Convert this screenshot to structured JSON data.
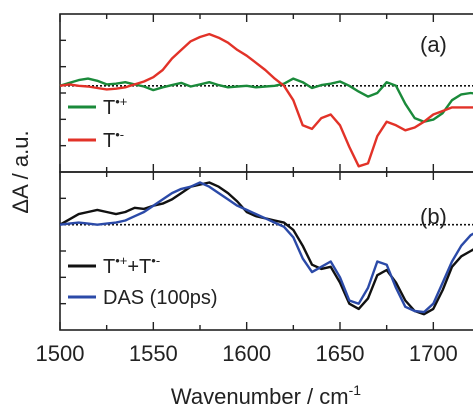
{
  "xlabel_base": "Wavenumber / cm",
  "xlabel_sup": "-1",
  "ylabel": "ΔA / a.u.",
  "chart_data": [
    {
      "type": "line",
      "panel_label": "(a)",
      "xlabel": "Wavenumber / cm-1",
      "ylabel": "ΔA / a.u.",
      "xlim": [
        1500,
        1725
      ],
      "ylim": [
        -1.2,
        1.0
      ],
      "xticks": [
        1500,
        1550,
        1600,
        1650,
        1700
      ],
      "baseline": 0,
      "legend_position": "lower-left",
      "series": [
        {
          "name_base": "T",
          "name_sup": "•+",
          "color": "#1a8a3a",
          "x": [
            1500,
            1505,
            1510,
            1515,
            1520,
            1525,
            1530,
            1535,
            1540,
            1545,
            1550,
            1555,
            1560,
            1565,
            1570,
            1575,
            1580,
            1585,
            1590,
            1595,
            1600,
            1605,
            1610,
            1615,
            1620,
            1625,
            1630,
            1635,
            1640,
            1645,
            1650,
            1655,
            1660,
            1665,
            1670,
            1675,
            1680,
            1685,
            1690,
            1695,
            1700,
            1705,
            1710,
            1715,
            1720,
            1725
          ],
          "y": [
            0.0,
            0.04,
            0.08,
            0.1,
            0.07,
            0.02,
            0.03,
            0.05,
            0.02,
            -0.01,
            -0.06,
            -0.02,
            0.01,
            0.04,
            -0.01,
            0.02,
            0.05,
            0.01,
            -0.02,
            -0.01,
            0.0,
            -0.02,
            -0.01,
            0.0,
            0.03,
            0.1,
            0.05,
            -0.03,
            0.01,
            0.03,
            0.06,
            0.0,
            -0.08,
            -0.15,
            -0.1,
            0.05,
            0.0,
            -0.25,
            -0.45,
            -0.5,
            -0.47,
            -0.38,
            -0.2,
            -0.12,
            -0.1,
            -0.12
          ]
        },
        {
          "name_base": "T",
          "name_sup": "•-",
          "color": "#e23228",
          "x": [
            1500,
            1505,
            1510,
            1515,
            1520,
            1525,
            1530,
            1535,
            1540,
            1545,
            1550,
            1555,
            1560,
            1565,
            1570,
            1575,
            1580,
            1585,
            1590,
            1595,
            1600,
            1605,
            1610,
            1615,
            1620,
            1625,
            1630,
            1635,
            1640,
            1645,
            1650,
            1655,
            1660,
            1665,
            1670,
            1675,
            1680,
            1685,
            1690,
            1695,
            1700,
            1705,
            1710,
            1715,
            1720,
            1725
          ],
          "y": [
            0.0,
            0.02,
            0.0,
            -0.01,
            -0.03,
            -0.05,
            -0.04,
            -0.02,
            0.02,
            0.06,
            0.12,
            0.22,
            0.38,
            0.5,
            0.62,
            0.68,
            0.72,
            0.67,
            0.6,
            0.5,
            0.42,
            0.32,
            0.22,
            0.1,
            0.0,
            -0.2,
            -0.55,
            -0.6,
            -0.45,
            -0.4,
            -0.55,
            -0.85,
            -1.12,
            -1.08,
            -0.7,
            -0.5,
            -0.55,
            -0.62,
            -0.58,
            -0.5,
            -0.4,
            -0.35,
            -0.3,
            -0.3,
            -0.3,
            -0.3
          ]
        }
      ]
    },
    {
      "type": "line",
      "panel_label": "(b)",
      "xlabel": "Wavenumber / cm-1",
      "ylabel": "ΔA / a.u.",
      "xlim": [
        1500,
        1725
      ],
      "ylim": [
        -1.0,
        0.5
      ],
      "xticks": [
        1500,
        1550,
        1600,
        1650,
        1700
      ],
      "baseline": 0,
      "legend_position": "lower-left",
      "series": [
        {
          "name_base": "T",
          "name_sup": "•+",
          "name_mid": "+T",
          "name_sup2": "•-",
          "color": "#111111",
          "x": [
            1500,
            1505,
            1510,
            1515,
            1520,
            1525,
            1530,
            1535,
            1540,
            1545,
            1550,
            1555,
            1560,
            1565,
            1570,
            1575,
            1580,
            1585,
            1590,
            1595,
            1600,
            1605,
            1610,
            1615,
            1620,
            1625,
            1630,
            1635,
            1640,
            1645,
            1650,
            1655,
            1660,
            1665,
            1670,
            1675,
            1680,
            1685,
            1690,
            1695,
            1700,
            1705,
            1710,
            1715,
            1720,
            1725
          ],
          "y": [
            0.0,
            0.05,
            0.1,
            0.12,
            0.14,
            0.12,
            0.1,
            0.12,
            0.16,
            0.15,
            0.18,
            0.2,
            0.24,
            0.3,
            0.36,
            0.38,
            0.4,
            0.36,
            0.3,
            0.22,
            0.12,
            0.08,
            0.06,
            0.04,
            0.02,
            -0.05,
            -0.2,
            -0.38,
            -0.42,
            -0.4,
            -0.55,
            -0.75,
            -0.8,
            -0.7,
            -0.48,
            -0.43,
            -0.55,
            -0.72,
            -0.82,
            -0.85,
            -0.8,
            -0.62,
            -0.4,
            -0.3,
            -0.25,
            -0.2
          ]
        },
        {
          "name": "DAS (100ps)",
          "color": "#2b4aa8",
          "x": [
            1500,
            1505,
            1510,
            1515,
            1520,
            1525,
            1530,
            1535,
            1540,
            1545,
            1550,
            1555,
            1560,
            1565,
            1570,
            1575,
            1580,
            1585,
            1590,
            1595,
            1600,
            1605,
            1610,
            1615,
            1620,
            1625,
            1630,
            1635,
            1640,
            1645,
            1650,
            1655,
            1660,
            1665,
            1670,
            1675,
            1680,
            1685,
            1690,
            1695,
            1700,
            1705,
            1710,
            1715,
            1720,
            1725
          ],
          "y": [
            0.0,
            0.01,
            0.02,
            0.01,
            0.0,
            0.01,
            0.02,
            0.04,
            0.08,
            0.12,
            0.18,
            0.24,
            0.3,
            0.34,
            0.36,
            0.4,
            0.36,
            0.3,
            0.24,
            0.18,
            0.14,
            0.1,
            0.06,
            0.02,
            -0.02,
            -0.12,
            -0.32,
            -0.45,
            -0.4,
            -0.35,
            -0.5,
            -0.72,
            -0.75,
            -0.6,
            -0.35,
            -0.38,
            -0.6,
            -0.78,
            -0.82,
            -0.83,
            -0.75,
            -0.55,
            -0.35,
            -0.2,
            -0.1,
            -0.05
          ]
        }
      ]
    }
  ]
}
